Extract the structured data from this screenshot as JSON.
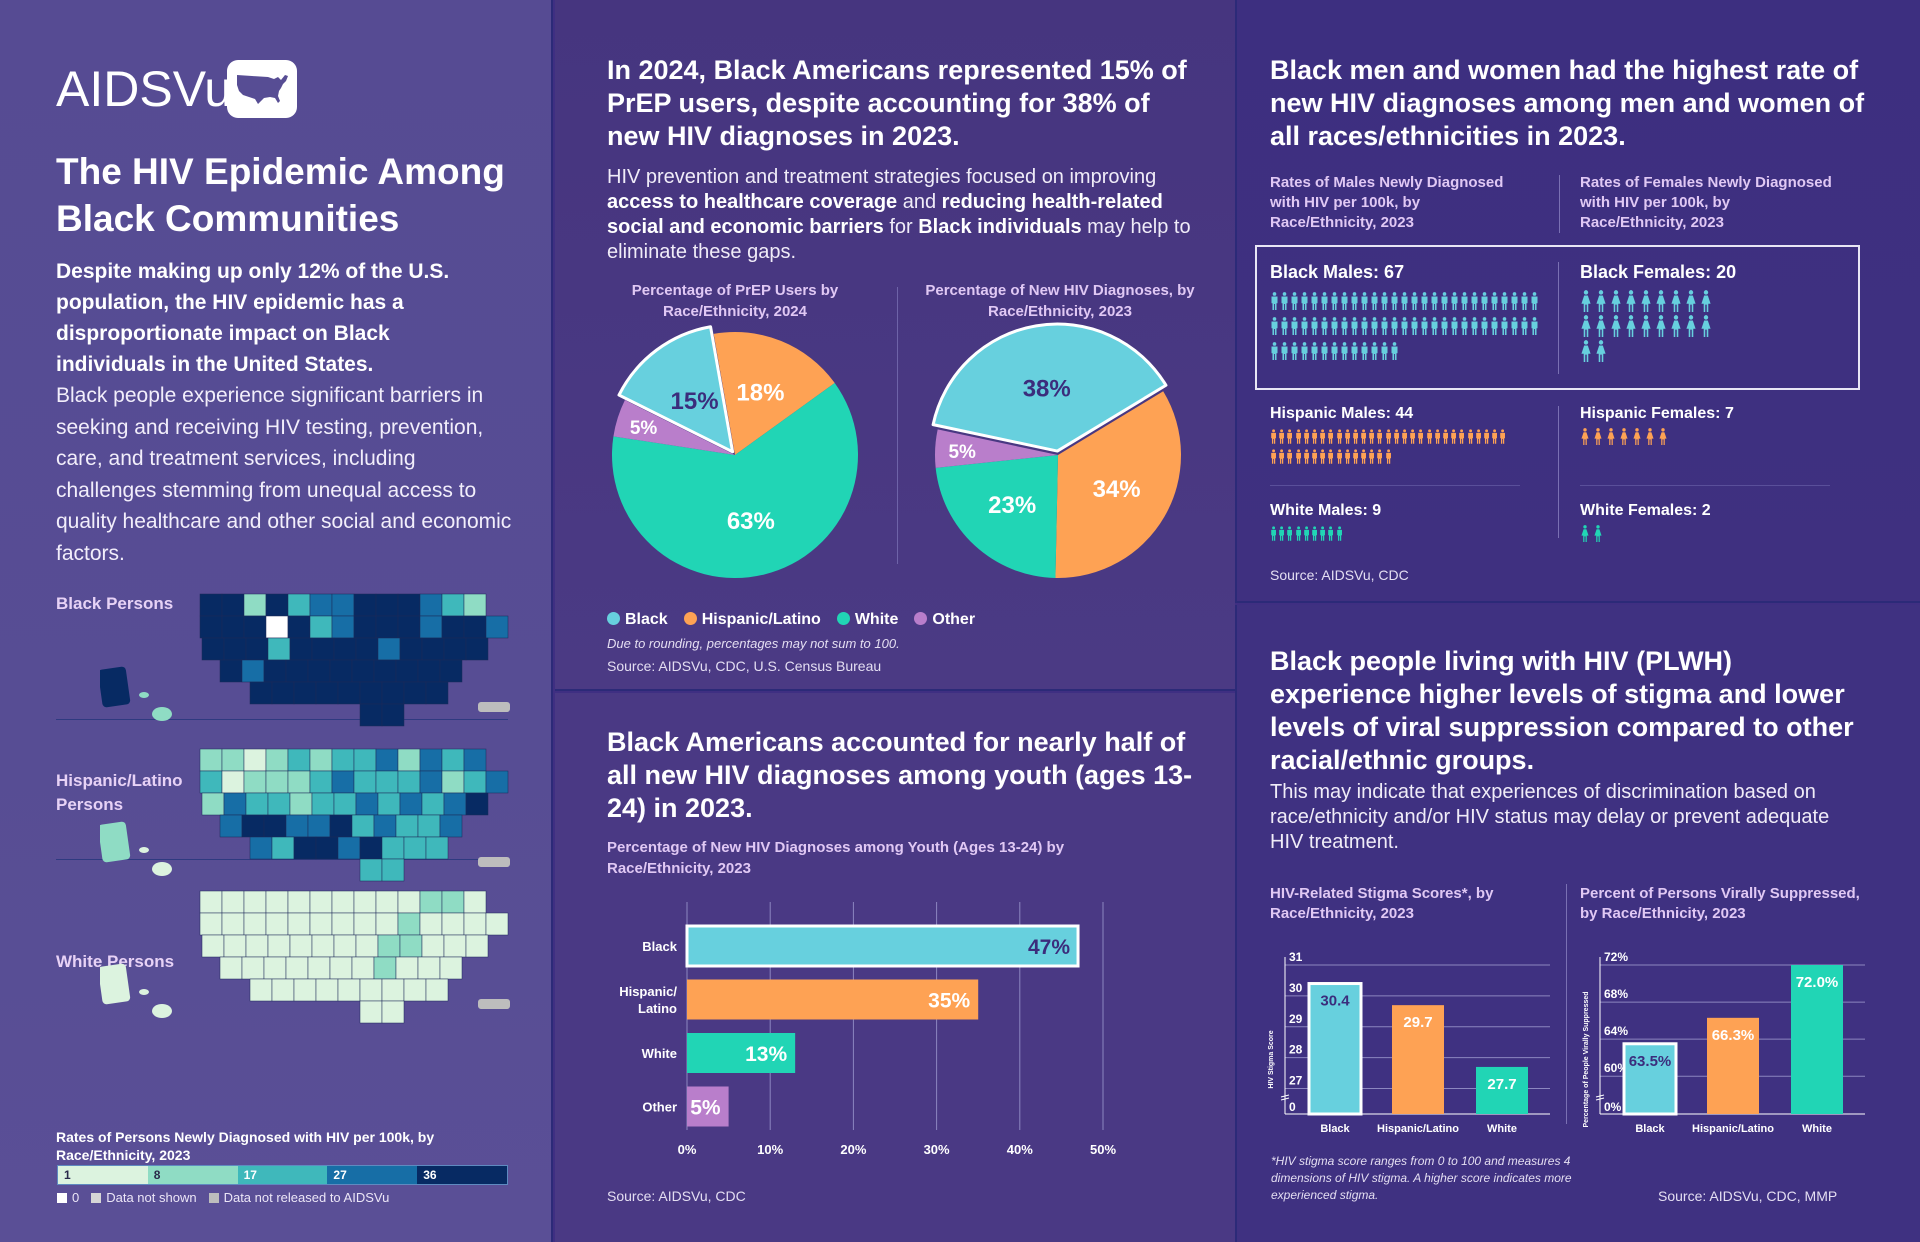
{
  "colors": {
    "black": "#67d0de",
    "hispanic": "#fea254",
    "white": "#21d5b5",
    "other": "#b97ecb",
    "dark_label": "#3b2d7c",
    "scale": [
      "#dcf3df",
      "#8fdcc4",
      "#3fb8bb",
      "#176ea6",
      "#072a63"
    ],
    "zero": "#ffffff",
    "not_shown": "#d6d6d6",
    "not_released": "#bdbdbd"
  },
  "logo": {
    "text": "AIDSVu",
    "icon": "us-map-icon"
  },
  "left": {
    "title": "The HIV Epidemic Among Black Communities",
    "lead_bold": "Despite making up only 12% of the U.S. population, the HIV epidemic has a disproportionate impact on Black individuals in the United States.",
    "lead_text": "Black people experience significant barriers in seeking and receiving HIV testing, prevention, care, and treatment services, including challenges stemming from unequal access to quality healthcare and other social and economic factors.",
    "maps": [
      {
        "label": "Black Persons"
      },
      {
        "label": "Hispanic/Latino Persons"
      },
      {
        "label": "White Persons"
      }
    ],
    "legend": {
      "title": "Rates of Persons Newly Diagnosed with HIV per 100k, by Race/Ethnicity, 2023",
      "breaks": [
        "1",
        "8",
        "17",
        "27",
        "36"
      ],
      "keys": [
        "0",
        "Data not shown",
        "Data not released to AIDSVu"
      ]
    }
  },
  "prep": {
    "title": "In 2024, Black Americans represented 15% of PrEP users, despite accounting for 38% of new HIV diagnoses in 2023.",
    "body_parts": [
      {
        "text": "HIV prevention and treatment strategies focused on improving ",
        "bold": false
      },
      {
        "text": "access to healthcare coverage",
        "bold": true
      },
      {
        "text": " and ",
        "bold": false
      },
      {
        "text": "reducing health-related social and economic barriers",
        "bold": true
      },
      {
        "text": " for ",
        "bold": false
      },
      {
        "text": "Black individuals",
        "bold": true
      },
      {
        "text": " may help to eliminate these gaps.",
        "bold": false
      }
    ],
    "legend": [
      "Black",
      "Hispanic/Latino",
      "White",
      "Other"
    ],
    "note": "Due to rounding, percentages may not sum to 100.",
    "source": "Source: AIDSVu, CDC, U.S. Census Bureau"
  },
  "youth": {
    "title": "Black Americans accounted for nearly half of all new HIV diagnoses among youth (ages 13-24) in 2023.",
    "source": "Source: AIDSVu, CDC"
  },
  "rates": {
    "title": "Black men and women had the highest rate of new HIV diagnoses among men and women of all races/ethnicities in 2023.",
    "males_header": "Rates of Males Newly Diagnosed with HIV per 100k, by Race/Ethnicity, 2023",
    "females_header": "Rates of Females Newly Diagnosed with HIV per 100k, by Race/Ethnicity, 2023",
    "source": "Source: AIDSVu, CDC"
  },
  "stigma": {
    "title": "Black people living with HIV (PLWH) experience higher levels of stigma and lower levels of viral suppression compared to other racial/ethnic groups.",
    "body": "This may indicate that experiences of discrimination based on race/ethnicity and/or HIV status may delay or prevent adequate HIV treatment.",
    "footnote": "*HIV stigma score ranges from 0 to 100 and measures 4 dimensions of HIV stigma. A higher score indicates more experienced stigma.",
    "source": "Source: AIDSVu, CDC, MMP"
  },
  "chart_data": [
    {
      "id": "prep-pie",
      "type": "pie",
      "title": "Percentage of PrEP Users by Race/Ethnicity, 2024",
      "categories": [
        "Hispanic/Latino",
        "White",
        "Other",
        "Black"
      ],
      "values": [
        18,
        63,
        5,
        15
      ],
      "labels": [
        "18%",
        "63%",
        "5%",
        "15%"
      ],
      "highlight": "Black",
      "legend": "bottom"
    },
    {
      "id": "diagnoses-pie",
      "type": "pie",
      "title": "Percentage of New HIV Diagnoses, by Race/Ethnicity, 2023",
      "categories": [
        "Black",
        "Hispanic/Latino",
        "White",
        "Other"
      ],
      "values": [
        38,
        34,
        23,
        5
      ],
      "labels": [
        "38%",
        "34%",
        "23%",
        "5%"
      ],
      "highlight": "Black",
      "legend": "bottom"
    },
    {
      "id": "youth-bar",
      "type": "bar",
      "orientation": "horizontal",
      "title": "Percentage of New HIV Diagnoses among Youth (Ages 13-24) by Race/Ethnicity, 2023",
      "categories": [
        "Black",
        "Hispanic/ Latino",
        "White",
        "Other"
      ],
      "values": [
        47,
        35,
        13,
        5
      ],
      "labels": [
        "47%",
        "35%",
        "13%",
        "5%"
      ],
      "xlim": [
        0,
        50
      ],
      "xticks": [
        "0%",
        "10%",
        "20%",
        "30%",
        "40%",
        "50%"
      ],
      "xtick_values": [
        0,
        10,
        20,
        30,
        40,
        50
      ],
      "grid": true
    },
    {
      "id": "rates-pictogram",
      "type": "table",
      "title": "Rates Newly Diagnosed with HIV per 100k, by Race/Ethnicity and Sex, 2023",
      "rows": [
        {
          "label": "Black Males: 67",
          "group": "Black",
          "sex": "male",
          "value": 67
        },
        {
          "label": "Black Females: 20",
          "group": "Black",
          "sex": "female",
          "value": 20
        },
        {
          "label": "Hispanic Males: 44",
          "group": "Hispanic/Latino",
          "sex": "male",
          "value": 44
        },
        {
          "label": "Hispanic Females: 7",
          "group": "Hispanic/Latino",
          "sex": "female",
          "value": 7
        },
        {
          "label": "White Males: 9",
          "group": "White",
          "sex": "male",
          "value": 9
        },
        {
          "label": "White Females: 2",
          "group": "White",
          "sex": "female",
          "value": 2
        }
      ]
    },
    {
      "id": "stigma-bar",
      "type": "bar",
      "title": "HIV-Related Stigma Scores*, by Race/Ethnicity, 2023",
      "ylabel": "HIV Stigma Score",
      "categories": [
        "Black",
        "Hispanic/Latino",
        "White"
      ],
      "values": [
        30.4,
        29.7,
        27.7
      ],
      "labels": [
        "30.4",
        "29.7",
        "27.7"
      ],
      "yticks": [
        "0",
        "27",
        "28",
        "29",
        "30",
        "31"
      ],
      "ylim": [
        26.5,
        31
      ],
      "axis_break": true,
      "grid": true
    },
    {
      "id": "suppression-bar",
      "type": "bar",
      "title": "Percent of Persons Virally Suppressed, by Race/Ethnicity, 2023",
      "ylabel": "Percentage of People Virally Suppressed",
      "categories": [
        "Black",
        "Hispanic/Latino",
        "White"
      ],
      "values": [
        63.5,
        66.3,
        72.0
      ],
      "labels": [
        "63.5%",
        "66.3%",
        "72.0%"
      ],
      "yticks": [
        "0%",
        "60%",
        "64%",
        "68%",
        "72%"
      ],
      "ylim": [
        57,
        72
      ],
      "axis_break": true,
      "grid": true
    }
  ]
}
